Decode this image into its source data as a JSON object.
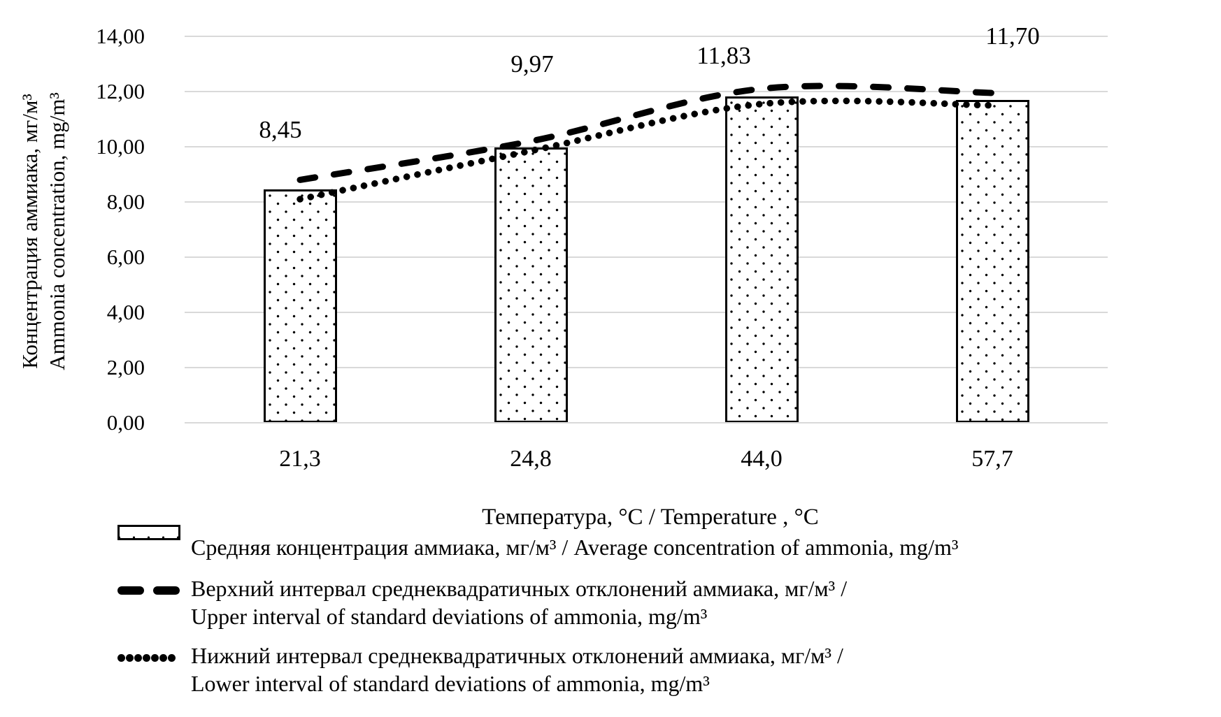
{
  "chart_data": {
    "type": "bar",
    "title": "",
    "categories": [
      "21,3",
      "24,8",
      "44,0",
      "57,7"
    ],
    "x_axis_title": "Температура, °C / Temperature , °C",
    "y_axis_title_lines": [
      "Концентрация аммиака, мг/м³",
      "Ammonia concentration, mg/m³"
    ],
    "y_ticks": [
      "14,00",
      "12,00",
      "10,00",
      "8,00",
      "6,00",
      "4,00",
      "2,00",
      "0,00"
    ],
    "ylim": [
      0,
      14
    ],
    "y_step": 2,
    "grid": true,
    "legend_position": "bottom-left",
    "series": [
      {
        "name": "Средняя концентрация аммиака, мг/м³ / Average concentration of ammonia, mg/m³",
        "type": "bar",
        "pattern": "white-with-black-dots",
        "values": [
          8.45,
          9.97,
          11.83,
          11.7
        ],
        "labels": [
          "8,45",
          "9,97",
          "11,83",
          "11,70"
        ]
      },
      {
        "name": "Верхний интервал среднеквадратичных отклонений аммиака, мг/м³ / Upper interval of standard deviations of ammonia, mg/m³",
        "type": "line",
        "style": "dashed",
        "values": [
          8.8,
          10.2,
          12.1,
          11.95
        ]
      },
      {
        "name": "Нижний интервал среднеквадратичных отклонений аммиака, мг/м³ / Lower interval of standard deviations of ammonia, mg/m³",
        "type": "line",
        "style": "dotted",
        "values": [
          8.1,
          9.85,
          11.55,
          11.5
        ]
      }
    ],
    "legend": [
      {
        "swatch": "dotted-bar",
        "lines": [
          "Средняя концентрация аммиака, мг/м³ / Average concentration of ammonia, mg/m³"
        ]
      },
      {
        "swatch": "dashed-line",
        "lines": [
          "Верхний интервал среднеквадратичных отклонений аммиака, мг/м³ /",
          "Upper interval of standard deviations of ammonia, mg/m³"
        ]
      },
      {
        "swatch": "dotted-line",
        "lines": [
          "Нижний интервал среднеквадратичных отклонений аммиака, мг/м³ /",
          "Lower interval of standard deviations of ammonia, mg/m³"
        ]
      }
    ],
    "colors": {
      "ink": "#000000",
      "gridline": "#d9d9d9",
      "bar_fill": "#ffffff",
      "background": "#ffffff"
    }
  }
}
